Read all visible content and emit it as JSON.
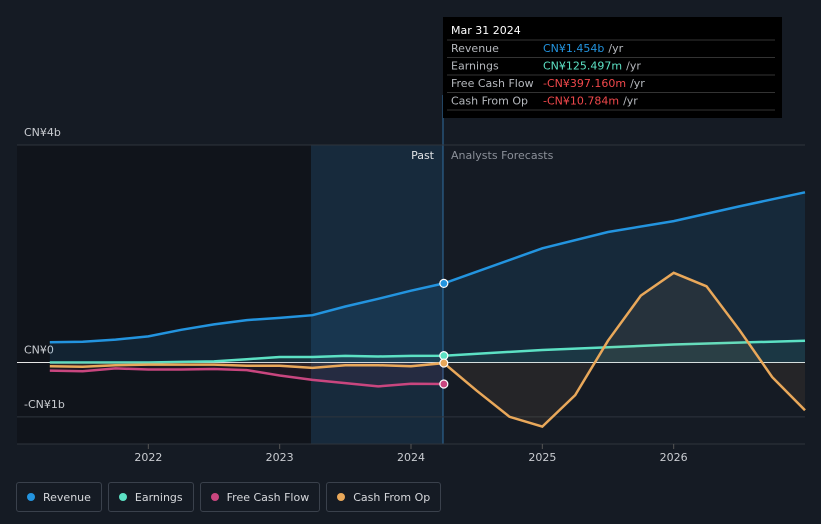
{
  "chart_data": {
    "type": "line",
    "ylim": [
      -1.5,
      4
    ],
    "yticks": [
      {
        "value": 4,
        "label": "CN¥4b"
      },
      {
        "value": 0,
        "label": "CN¥0"
      },
      {
        "value": -1,
        "label": "-CN¥1b"
      }
    ],
    "xlim": [
      2021,
      2027
    ],
    "xticks": [
      2022,
      2023,
      2024,
      2025,
      2026
    ],
    "past_label": "Past",
    "forecast_label": "Analysts Forecasts",
    "series": [
      {
        "name": "Revenue",
        "color": "#2394df",
        "x": [
          2021.25,
          2021.5,
          2021.75,
          2022,
          2022.25,
          2022.5,
          2022.75,
          2023,
          2023.25,
          2023.5,
          2023.75,
          2024,
          2024.25,
          2025,
          2025.5,
          2026,
          2026.5,
          2027
        ],
        "values": [
          0.37,
          0.38,
          0.42,
          0.48,
          0.6,
          0.7,
          0.78,
          0.82,
          0.87,
          1.03,
          1.17,
          1.32,
          1.454,
          2.1,
          2.4,
          2.6,
          2.87,
          3.13
        ]
      },
      {
        "name": "Earnings",
        "color": "#5ce1c4",
        "x": [
          2021.25,
          2021.5,
          2021.75,
          2022,
          2022.25,
          2022.5,
          2022.75,
          2023,
          2023.25,
          2023.5,
          2023.75,
          2024,
          2024.25,
          2025,
          2026,
          2027
        ],
        "values": [
          0,
          0,
          0,
          0,
          0.01,
          0.02,
          0.06,
          0.1,
          0.1,
          0.12,
          0.11,
          0.12,
          0.125,
          0.23,
          0.33,
          0.4
        ]
      },
      {
        "name": "Free Cash Flow",
        "color": "#c9467f",
        "x": [
          2021.25,
          2021.5,
          2021.75,
          2022,
          2022.25,
          2022.5,
          2022.75,
          2023,
          2023.25,
          2023.5,
          2023.75,
          2024,
          2024.25
        ],
        "values": [
          -0.15,
          -0.16,
          -0.11,
          -0.13,
          -0.13,
          -0.12,
          -0.14,
          -0.24,
          -0.32,
          -0.38,
          -0.44,
          -0.39,
          -0.397
        ]
      },
      {
        "name": "Cash From Op",
        "color": "#e9a85a",
        "x": [
          2021.25,
          2021.5,
          2021.75,
          2022,
          2022.25,
          2022.5,
          2022.75,
          2023,
          2023.25,
          2023.5,
          2023.75,
          2024,
          2024.25,
          2024.5,
          2024.75,
          2025,
          2025.25,
          2025.5,
          2025.75,
          2026,
          2026.25,
          2026.5,
          2026.75,
          2027
        ],
        "values": [
          -0.07,
          -0.08,
          -0.05,
          -0.04,
          -0.04,
          -0.04,
          -0.06,
          -0.06,
          -0.1,
          -0.05,
          -0.05,
          -0.07,
          -0.011,
          -0.52,
          -1.0,
          -1.18,
          -0.6,
          0.4,
          1.23,
          1.65,
          1.4,
          0.6,
          -0.27,
          -0.88
        ]
      }
    ],
    "tooltip": {
      "date": "Mar 31 2024",
      "rows": [
        {
          "label": "Revenue",
          "value": "CN¥1.454b",
          "unit": "/yr"
        },
        {
          "label": "Earnings",
          "value": "CN¥125.497m",
          "unit": "/yr"
        },
        {
          "label": "Free Cash Flow",
          "value": "-CN¥397.160m",
          "unit": "/yr"
        },
        {
          "label": "Cash From Op",
          "value": "-CN¥10.784m",
          "unit": "/yr"
        }
      ]
    }
  }
}
